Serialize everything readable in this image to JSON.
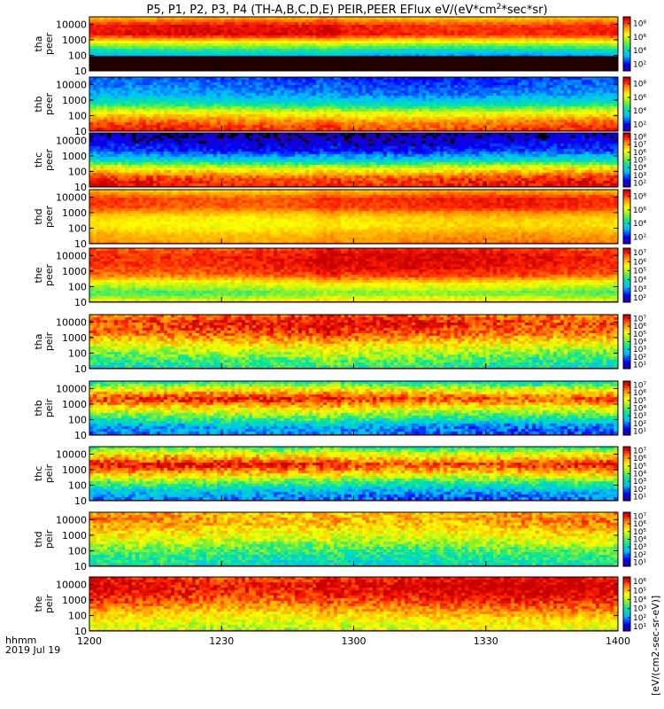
{
  "chart_data": {
    "type": "heatmap",
    "title": "P5, P1, P2, P3, P4 (TH-A,B,C,D,E) PEIR,PEER EFlux eV/(eV*cm²*sec*sr)",
    "x": {
      "ticks": [
        "1200",
        "1230",
        "1300",
        "1330",
        "1400"
      ],
      "range": [
        "1200",
        "1400"
      ],
      "label_line1": "hhmm",
      "label_line2": "2019 Jul 19"
    },
    "colorbar_label": "[eV/(cm2-sec-sr-eV)]",
    "ylim": [
      10,
      30000
    ],
    "y_scale": "log",
    "panels": [
      {
        "probe": "tha",
        "instrument": "peer",
        "y_ticks": [
          "10",
          "100",
          "1000",
          "10000"
        ],
        "cb_ticks": [
          "10²",
          "10⁴",
          "10⁶",
          "10⁸"
        ],
        "cb_range": [
          1,
          9
        ],
        "profile": [
          1.8,
          2.5,
          3.6,
          5.8,
          8.6,
          8.5,
          7.0
        ],
        "gap_bands": [
          [
            10,
            90
          ]
        ],
        "noise": 0.3
      },
      {
        "probe": "thb",
        "instrument": "peer",
        "y_ticks": [
          "10",
          "100",
          "1000",
          "10000"
        ],
        "cb_ticks": [
          "10²",
          "10⁴",
          "10⁶",
          "10⁸"
        ],
        "cb_range": [
          1,
          9
        ],
        "profile": [
          8.5,
          7.8,
          6.4,
          4.2,
          3.0,
          2.6,
          2.3
        ],
        "gap_bands": [],
        "noise": 0.45
      },
      {
        "probe": "thc",
        "instrument": "peer",
        "y_ticks": [
          "10",
          "100",
          "1000",
          "10000"
        ],
        "cb_ticks": [
          "10²",
          "10³",
          "10⁴",
          "10⁵",
          "10⁶",
          "10⁷",
          "10⁸"
        ],
        "cb_range": [
          1,
          9
        ],
        "profile": [
          8.6,
          8.2,
          6.5,
          3.8,
          2.2,
          1.6,
          1.2
        ],
        "gap_bands": [],
        "noise": 0.55
      },
      {
        "probe": "thd",
        "instrument": "peer",
        "y_ticks": [
          "10",
          "100",
          "1000",
          "10000"
        ],
        "cb_ticks": [
          "10²",
          "10⁴",
          "10⁶",
          "10⁸"
        ],
        "cb_range": [
          1,
          9
        ],
        "profile": [
          7.6,
          7.3,
          6.6,
          6.9,
          8.2,
          8.3,
          7.0
        ],
        "gap_bands": [],
        "noise": 0.3
      },
      {
        "probe": "the",
        "instrument": "peer",
        "y_ticks": [
          "10",
          "100",
          "1000",
          "10000"
        ],
        "cb_ticks": [
          "10²",
          "10³",
          "10⁴",
          "10⁵",
          "10⁶",
          "10⁷"
        ],
        "cb_range": [
          1,
          8
        ],
        "profile": [
          6.0,
          4.5,
          5.6,
          7.2,
          7.6,
          7.7,
          7.3
        ],
        "gap_bands": [],
        "noise": 0.35
      },
      {
        "probe": "tha",
        "instrument": "peir",
        "y_ticks": [
          "10",
          "100",
          "1000",
          "10000"
        ],
        "cb_ticks": [
          "10¹",
          "10²",
          "10³",
          "10⁴",
          "10⁵",
          "10⁶",
          "10⁷"
        ],
        "cb_range": [
          0,
          7
        ],
        "profile": [
          2.8,
          3.4,
          4.2,
          5.2,
          6.2,
          6.5,
          6.0
        ],
        "gap_bands": [],
        "noise": 0.7
      },
      {
        "probe": "thb",
        "instrument": "peir",
        "y_ticks": [
          "10",
          "100",
          "1000",
          "10000"
        ],
        "cb_ticks": [
          "10¹",
          "10²",
          "10³",
          "10⁴",
          "10⁵",
          "10⁶",
          "10⁷"
        ],
        "cb_range": [
          0,
          7
        ],
        "profile": [
          1.5,
          1.8,
          3.4,
          4.8,
          6.5,
          4.9,
          2.6
        ],
        "gap_bands": [],
        "noise": 0.7
      },
      {
        "probe": "thc",
        "instrument": "peir",
        "y_ticks": [
          "10",
          "100",
          "1000",
          "10000"
        ],
        "cb_ticks": [
          "10¹",
          "10²",
          "10³",
          "10⁴",
          "10⁵",
          "10⁶",
          "10⁷"
        ],
        "cb_range": [
          0,
          7
        ],
        "profile": [
          1.4,
          2.0,
          3.3,
          5.2,
          6.6,
          5.0,
          3.0
        ],
        "gap_bands": [],
        "noise": 0.7
      },
      {
        "probe": "thd",
        "instrument": "peir",
        "y_ticks": [
          "10",
          "100",
          "1000",
          "10000"
        ],
        "cb_ticks": [
          "10¹",
          "10²",
          "10³",
          "10⁴",
          "10⁵",
          "10⁶",
          "10⁷"
        ],
        "cb_range": [
          0,
          7
        ],
        "profile": [
          2.6,
          3.0,
          3.6,
          4.4,
          5.1,
          5.6,
          5.4
        ],
        "gap_bands": [],
        "noise": 0.7
      },
      {
        "probe": "the",
        "instrument": "peir",
        "y_ticks": [
          "10",
          "100",
          "1000",
          "10000"
        ],
        "cb_ticks": [
          "10¹",
          "10²",
          "10³",
          "10⁴",
          "10⁵",
          "10⁶"
        ],
        "cb_range": [
          0,
          6
        ],
        "profile": [
          3.6,
          4.0,
          4.6,
          5.2,
          5.7,
          5.9,
          5.6
        ],
        "gap_bands": [],
        "noise": 0.5
      }
    ]
  }
}
